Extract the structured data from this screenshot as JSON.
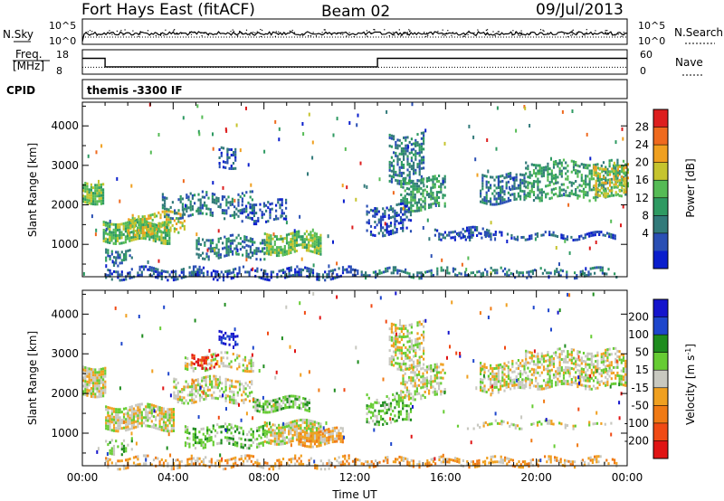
{
  "header": {
    "radar": "Fort Hays East (fitACF)",
    "beam": "Beam 02",
    "date": "09/Jul/2013"
  },
  "nsky_panel": {
    "left_label": "N.Sky",
    "right_label": "N.Search",
    "left_ticks": [
      "10^5",
      "10^0"
    ],
    "right_ticks": [
      "10^5",
      "10^0"
    ]
  },
  "freq_panel": {
    "left_label_1": "Freq.",
    "left_label_2": "[MHz]",
    "left_ticks": [
      "18",
      "8"
    ],
    "right_label": "Nave",
    "right_ticks": [
      "60",
      "0"
    ]
  },
  "cpid": {
    "label": "CPID",
    "text": "themis -3300 IF"
  },
  "colors": {
    "power": [
      "#0a1ecc",
      "#2a4fb4",
      "#327a7a",
      "#2e9a62",
      "#55bb55",
      "#c6c42e",
      "#f0a020",
      "#ef6a1e",
      "#dd1e1e"
    ],
    "velocity": [
      "#1414cc",
      "#1e46cc",
      "#1e8c1e",
      "#66cc33",
      "#c8c8c0",
      "#f0a020",
      "#f07a14",
      "#f04a14",
      "#e01414"
    ]
  },
  "chart_data": [
    {
      "type": "line",
      "title": "",
      "ylabel": "N.Sky",
      "y_scale": "log",
      "ylim": [
        "10^0",
        "10^5"
      ],
      "series": [
        {
          "name": "N.Sky",
          "values": [
            10000.0,
            10000.0,
            10000.0,
            10000.0,
            10000.0,
            10000.0,
            10000.0,
            10000.0,
            10000.0,
            10000.0,
            10000.0,
            10000.0,
            10000.0
          ]
        }
      ]
    },
    {
      "type": "line",
      "ylabel": "Freq. [MHz]",
      "ylim": [
        8,
        18
      ],
      "x": [
        "00:00",
        "01:00",
        "13:00",
        "24:00"
      ],
      "series": [
        {
          "name": "Freq.",
          "values": [
            14.5,
            11.0,
            14.5,
            14.5
          ]
        },
        {
          "name": "Nave",
          "values": [
            17,
            17,
            17,
            17
          ]
        }
      ]
    },
    {
      "type": "heatmap",
      "name": "power-panel",
      "ylabel": "Slant Range [km]",
      "colorbar_label": "Power [dB]",
      "colorbar_ticks": [
        "28",
        "24",
        "20",
        "16",
        "12",
        "8",
        "4"
      ],
      "y_ticks": [
        "4000",
        "3000",
        "2000",
        "1000"
      ],
      "ylim": [
        180,
        4600
      ],
      "blobs": [
        {
          "t0": 0.0,
          "t1": 0.9,
          "r0": 2100,
          "r1": 2600,
          "c": 4,
          "d": 0.85
        },
        {
          "t0": 0.9,
          "t1": 3.8,
          "r0": 1100,
          "r1": 1600,
          "c": 4,
          "d": 0.8
        },
        {
          "t0": 1.0,
          "t1": 2.2,
          "r0": 500,
          "r1": 900,
          "c": 2,
          "d": 0.5
        },
        {
          "t0": 2.0,
          "t1": 4.5,
          "r0": 1300,
          "r1": 1800,
          "c": 5,
          "d": 0.5
        },
        {
          "t0": 3.5,
          "t1": 7.5,
          "r0": 1700,
          "r1": 2300,
          "c": 2,
          "d": 0.4
        },
        {
          "t0": 6.0,
          "t1": 6.8,
          "r0": 3000,
          "r1": 3500,
          "c": 1,
          "d": 0.5
        },
        {
          "t0": 8.0,
          "t1": 10.5,
          "r0": 800,
          "r1": 1300,
          "c": 4,
          "d": 0.8
        },
        {
          "t0": 5.0,
          "t1": 8.0,
          "r0": 700,
          "r1": 1200,
          "c": 2,
          "d": 0.5
        },
        {
          "t0": 7.0,
          "t1": 9.0,
          "r0": 1600,
          "r1": 2100,
          "c": 1,
          "d": 0.4
        },
        {
          "t0": 1.0,
          "t1": 12.0,
          "r0": 180,
          "r1": 400,
          "c": 1,
          "d": 0.5
        },
        {
          "t0": 12.0,
          "t1": 23.5,
          "r0": 180,
          "r1": 380,
          "c": 2,
          "d": 0.45
        },
        {
          "t0": 13.5,
          "t1": 15.0,
          "r0": 2600,
          "r1": 3800,
          "c": 2,
          "d": 0.55
        },
        {
          "t0": 14.0,
          "t1": 16.0,
          "r0": 1900,
          "r1": 2700,
          "c": 3,
          "d": 0.55
        },
        {
          "t0": 12.5,
          "t1": 14.5,
          "r0": 1300,
          "r1": 2000,
          "c": 1,
          "d": 0.45
        },
        {
          "t0": 15.5,
          "t1": 18.0,
          "r0": 1150,
          "r1": 1400,
          "c": 1,
          "d": 0.5
        },
        {
          "t0": 16.5,
          "t1": 23.5,
          "r0": 1180,
          "r1": 1280,
          "c": 1,
          "d": 0.5
        },
        {
          "t0": 17.5,
          "t1": 19.5,
          "r0": 2100,
          "r1": 2800,
          "c": 2,
          "d": 0.55
        },
        {
          "t0": 19.5,
          "t1": 23.9,
          "r0": 2200,
          "r1": 3100,
          "c": 3,
          "d": 0.5
        },
        {
          "t0": 22.5,
          "t1": 24.0,
          "r0": 2300,
          "r1": 3000,
          "c": 5,
          "d": 0.5
        }
      ]
    },
    {
      "type": "heatmap",
      "name": "velocity-panel",
      "ylabel": "Slant Range [km]",
      "colorbar_label": "Velocity [m s^-1]",
      "colorbar_ticks": [
        "200",
        "100",
        "50",
        "15",
        "-15",
        "-50",
        "-100",
        "-200"
      ],
      "y_ticks": [
        "4000",
        "3000",
        "2000",
        "1000"
      ],
      "ylim": [
        180,
        4600
      ],
      "x_ticks": [
        "00:00",
        "04:00",
        "08:00",
        "12:00",
        "16:00",
        "20:00",
        "00:00"
      ],
      "xlabel": "Time UT",
      "blobs": [
        {
          "t0": 0.0,
          "t1": 1.0,
          "r0": 2000,
          "r1": 2700,
          "c": 4,
          "d": 0.85
        },
        {
          "t0": 1.0,
          "t1": 4.0,
          "r0": 1100,
          "r1": 1700,
          "c": 4,
          "d": 0.8
        },
        {
          "t0": 1.0,
          "t1": 2.2,
          "r0": 500,
          "r1": 900,
          "c": 3,
          "d": 0.4
        },
        {
          "t0": 4.0,
          "t1": 7.5,
          "r0": 1800,
          "r1": 2400,
          "c": 4,
          "d": 0.5
        },
        {
          "t0": 4.5,
          "t1": 7.5,
          "r0": 2600,
          "r1": 3000,
          "c": 4,
          "d": 0.45
        },
        {
          "t0": 4.8,
          "t1": 6.0,
          "r0": 2700,
          "r1": 3000,
          "c": 8,
          "d": 0.4
        },
        {
          "t0": 6.0,
          "t1": 6.8,
          "r0": 3300,
          "r1": 3600,
          "c": 0,
          "d": 0.5
        },
        {
          "t0": 7.5,
          "t1": 10.0,
          "r0": 1600,
          "r1": 1900,
          "c": 3,
          "d": 0.8
        },
        {
          "t0": 4.5,
          "t1": 8.0,
          "r0": 700,
          "r1": 1200,
          "c": 3,
          "d": 0.45
        },
        {
          "t0": 8.0,
          "t1": 10.5,
          "r0": 800,
          "r1": 1300,
          "c": 4,
          "d": 0.8
        },
        {
          "t0": 9.5,
          "t1": 11.5,
          "r0": 700,
          "r1": 1100,
          "c": 5,
          "d": 0.85
        },
        {
          "t0": 1.0,
          "t1": 12.0,
          "r0": 180,
          "r1": 400,
          "c": 5,
          "d": 0.45
        },
        {
          "t0": 12.0,
          "t1": 23.5,
          "r0": 180,
          "r1": 380,
          "c": 5,
          "d": 0.5
        },
        {
          "t0": 13.5,
          "t1": 15.0,
          "r0": 2700,
          "r1": 3800,
          "c": 4,
          "d": 0.55
        },
        {
          "t0": 14.0,
          "t1": 16.0,
          "r0": 1900,
          "r1": 2700,
          "c": 4,
          "d": 0.5
        },
        {
          "t0": 12.5,
          "t1": 14.5,
          "r0": 1300,
          "r1": 2000,
          "c": 3,
          "d": 0.45
        },
        {
          "t0": 16.5,
          "t1": 23.5,
          "r0": 1180,
          "r1": 1280,
          "c": 4,
          "d": 0.4
        },
        {
          "t0": 17.5,
          "t1": 19.5,
          "r0": 2100,
          "r1": 2800,
          "c": 4,
          "d": 0.55
        },
        {
          "t0": 19.5,
          "t1": 23.9,
          "r0": 2200,
          "r1": 3100,
          "c": 4,
          "d": 0.55
        }
      ]
    }
  ]
}
